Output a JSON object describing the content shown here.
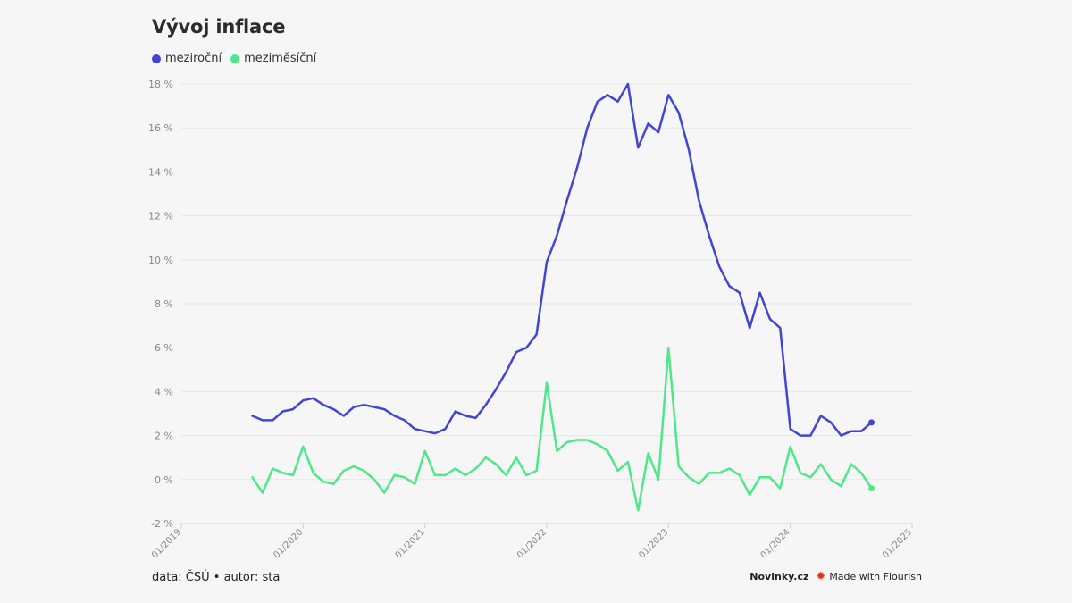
{
  "title": "Vývoj inflace",
  "footer": {
    "source_label": "data: ČSÚ • autor: sta",
    "brand": "Novinky.cz",
    "flourish_label": "Made with Flourish",
    "flourish_icon": "flourish-logo-icon"
  },
  "chart_data": {
    "type": "line",
    "title": "Vývoj inflace",
    "xlabel": "",
    "ylabel": "",
    "ylim": [
      -2,
      18
    ],
    "y_ticks": [
      -2,
      0,
      2,
      4,
      6,
      8,
      10,
      12,
      14,
      16,
      18
    ],
    "y_tick_labels": [
      "-2 %",
      "0 %",
      "2 %",
      "4 %",
      "6 %",
      "8 %",
      "10 %",
      "12 %",
      "14 %",
      "16 %",
      "18 %"
    ],
    "x_range": [
      "2019-01",
      "2025-01"
    ],
    "x_tick_labels": [
      "01/2019",
      "01/2020",
      "01/2021",
      "01/2022",
      "01/2023",
      "01/2024",
      "01/2025"
    ],
    "grid": true,
    "legend_position": "top-left",
    "x_start": "2019-08",
    "series": [
      {
        "name": "meziroční",
        "color": "#4444d4",
        "values": [
          2.9,
          2.7,
          2.7,
          3.1,
          3.2,
          3.6,
          3.7,
          3.4,
          3.2,
          2.9,
          3.3,
          3.4,
          3.3,
          3.2,
          2.9,
          2.7,
          2.3,
          2.2,
          2.1,
          2.3,
          3.1,
          2.9,
          2.8,
          3.4,
          4.1,
          4.9,
          5.8,
          6.0,
          6.6,
          9.9,
          11.1,
          12.7,
          14.2,
          16.0,
          17.2,
          17.5,
          17.2,
          18.0,
          15.1,
          16.2,
          15.8,
          17.5,
          16.7,
          15.0,
          12.7,
          11.1,
          9.7,
          8.8,
          8.5,
          6.9,
          8.5,
          7.3,
          6.9,
          2.3,
          2.0,
          2.0,
          2.9,
          2.6,
          2.0,
          2.2,
          2.2,
          2.6
        ]
      },
      {
        "name": "meziměsíční",
        "color": "#4ee88a",
        "values": [
          0.1,
          -0.6,
          0.5,
          0.3,
          0.2,
          1.5,
          0.3,
          -0.1,
          -0.2,
          0.4,
          0.6,
          0.4,
          0.0,
          -0.6,
          0.2,
          0.1,
          -0.2,
          1.3,
          0.2,
          0.2,
          0.5,
          0.2,
          0.5,
          1.0,
          0.7,
          0.2,
          1.0,
          0.2,
          0.4,
          4.4,
          1.3,
          1.7,
          1.8,
          1.8,
          1.6,
          1.3,
          0.4,
          0.8,
          -1.4,
          1.2,
          0.0,
          6.0,
          0.6,
          0.1,
          -0.2,
          0.3,
          0.3,
          0.5,
          0.2,
          -0.7,
          0.1,
          0.1,
          -0.4,
          1.5,
          0.3,
          0.1,
          0.7,
          0.0,
          -0.3,
          0.7,
          0.3,
          -0.4
        ]
      }
    ]
  }
}
